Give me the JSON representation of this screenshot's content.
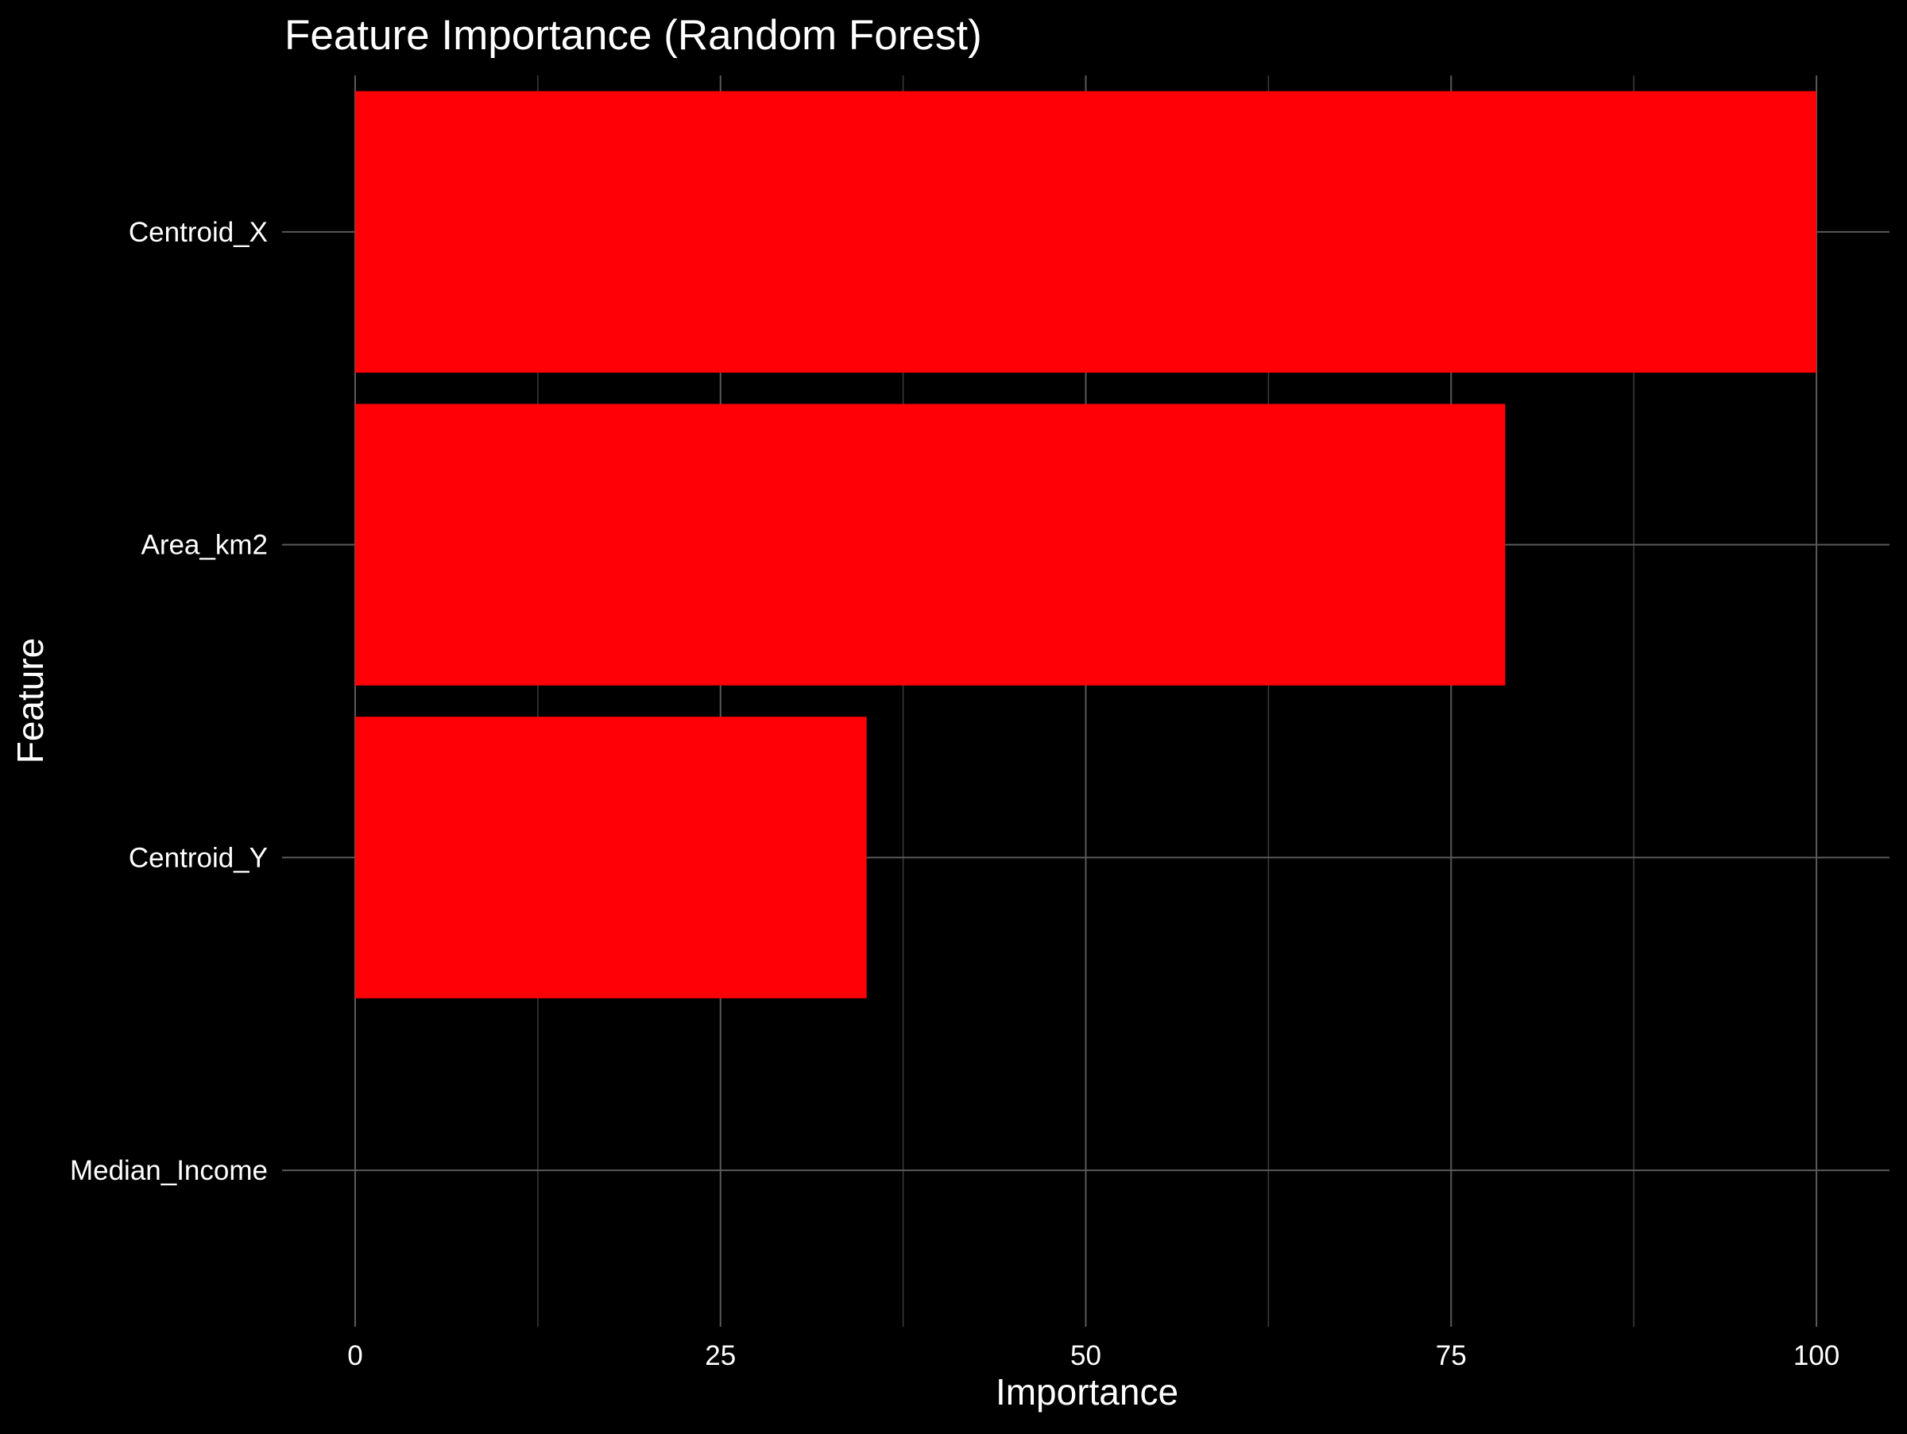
{
  "chart_data": {
    "type": "bar",
    "orientation": "horizontal",
    "title": "Feature Importance (Random Forest)",
    "xlabel": "Importance",
    "ylabel": "Feature",
    "categories": [
      "Centroid_X",
      "Area_km2",
      "Centroid_Y",
      "Median_Income"
    ],
    "values": [
      100,
      78.7,
      35,
      0
    ],
    "xlim": [
      -5,
      105
    ],
    "xticks": [
      0,
      25,
      50,
      75,
      100
    ],
    "grid": true,
    "legend": "none",
    "colors": {
      "background": "#000000",
      "bar": "#ff0007",
      "text": "#ffffff",
      "grid_major": "#5a5a5a",
      "grid_minor": "#3c3c3c"
    }
  }
}
